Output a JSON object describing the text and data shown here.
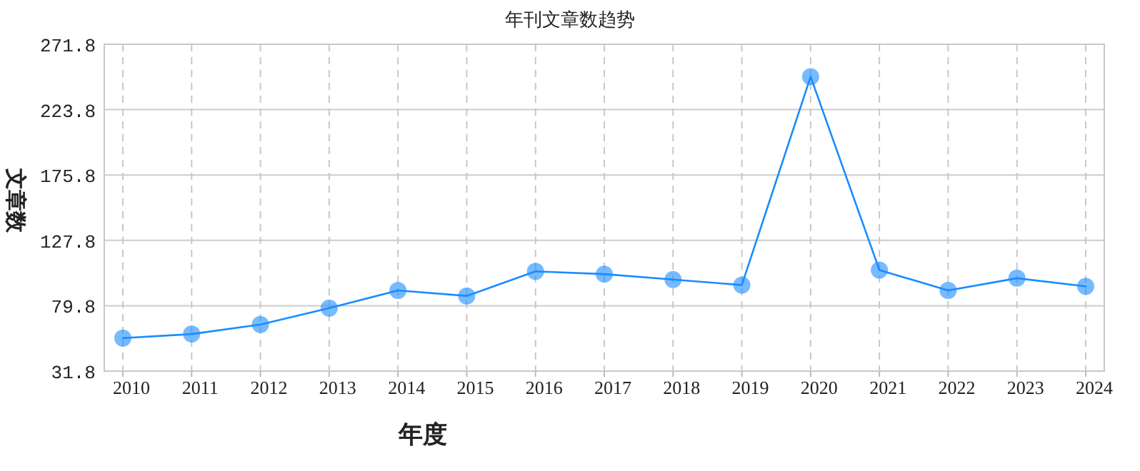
{
  "chart_data": {
    "type": "line",
    "title": "年刊文章数趋势",
    "xlabel": "年度",
    "ylabel": "文章数",
    "categories": [
      "2010",
      "2011",
      "2012",
      "2013",
      "2014",
      "2015",
      "2016",
      "2017",
      "2018",
      "2019",
      "2020",
      "2021",
      "2022",
      "2023",
      "2024"
    ],
    "series": [
      {
        "color": "#1a8cff",
        "values": [
          56,
          59,
          66,
          78,
          91,
          87,
          105,
          103,
          99,
          95,
          248,
          106,
          91,
          100,
          94
        ]
      }
    ],
    "ylim": [
      31.8,
      271.8
    ],
    "yticks": [
      31.8,
      79.8,
      127.8,
      175.8,
      223.8,
      271.8
    ],
    "grid": true,
    "marker": "circle",
    "line_style": "solid"
  }
}
